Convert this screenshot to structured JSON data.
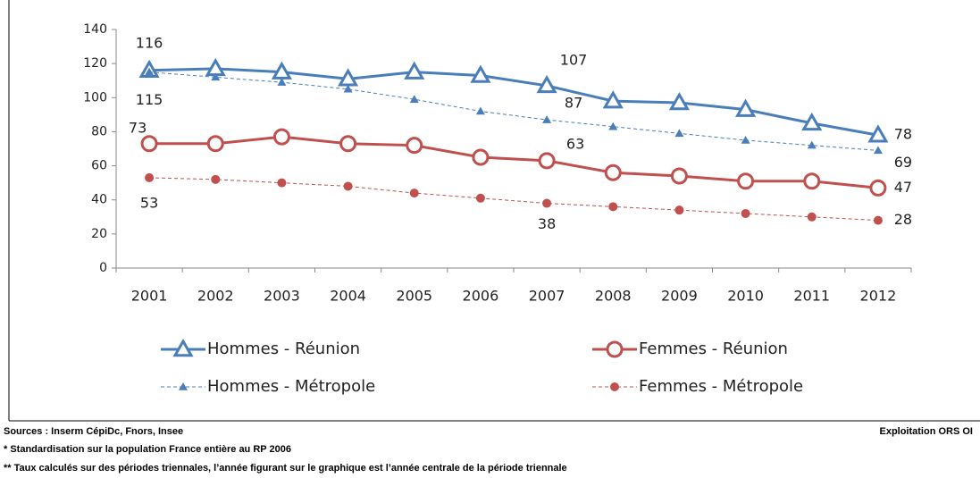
{
  "chart_data": {
    "type": "line",
    "categories": [
      "2001",
      "2002",
      "2003",
      "2004",
      "2005",
      "2006",
      "2007",
      "2008",
      "2009",
      "2010",
      "2011",
      "2012"
    ],
    "ylim": [
      0,
      140
    ],
    "yticks": [
      0,
      20,
      40,
      60,
      80,
      100,
      120,
      140
    ],
    "grid": false,
    "series": [
      {
        "name": "Hommes - Réunion",
        "color": "#4a7ebb",
        "marker": "triangle-open",
        "dashed": false,
        "values": [
          116,
          117,
          115,
          111,
          115,
          113,
          107,
          98,
          97,
          93,
          85,
          78
        ],
        "value_labels": [
          "116",
          null,
          null,
          null,
          null,
          null,
          "107",
          null,
          null,
          null,
          null,
          "78"
        ]
      },
      {
        "name": "Femmes - Réunion",
        "color": "#c0504d",
        "marker": "circle-open",
        "dashed": false,
        "values": [
          73,
          73,
          77,
          73,
          72,
          65,
          63,
          56,
          54,
          51,
          51,
          47
        ],
        "value_labels": [
          "73",
          null,
          null,
          null,
          null,
          null,
          "63",
          null,
          null,
          null,
          null,
          "47"
        ]
      },
      {
        "name": "Hommes - Métropole",
        "color": "#4a7ebb",
        "marker": "triangle",
        "dashed": true,
        "values": [
          115,
          112,
          109,
          105,
          99,
          92,
          87,
          83,
          79,
          75,
          72,
          69
        ],
        "value_labels": [
          "115",
          null,
          null,
          null,
          null,
          null,
          "87",
          null,
          null,
          null,
          null,
          "69"
        ]
      },
      {
        "name": "Femmes - Métropole",
        "color": "#c0504d",
        "marker": "circle",
        "dashed": true,
        "values": [
          53,
          52,
          50,
          48,
          44,
          41,
          38,
          36,
          34,
          32,
          30,
          28
        ],
        "value_labels": [
          "53",
          null,
          null,
          null,
          null,
          null,
          "38",
          null,
          null,
          null,
          null,
          "28"
        ]
      }
    ]
  },
  "notes": {
    "sources": "Sources : Inserm CépiDc, Fnors, Insee",
    "credit": "Exploitation ORS OI",
    "note1": "* Standardisation sur la population France entière au RP 2006",
    "note2": "** Taux calculés sur des périodes triennales, l’année figurant sur le graphique est l’année centrale de la période triennale"
  }
}
